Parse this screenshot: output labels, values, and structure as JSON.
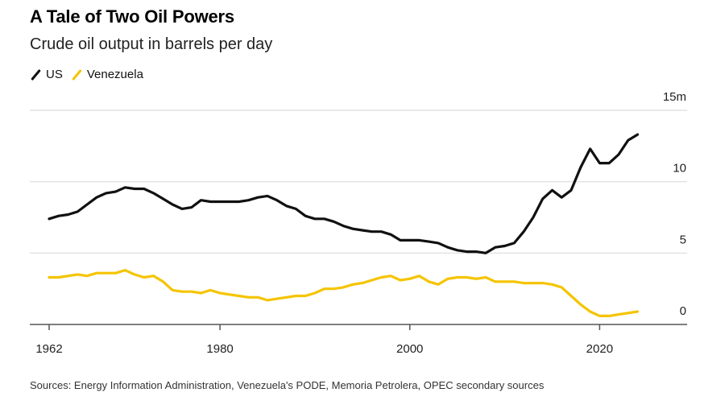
{
  "title": "A Tale of Two Oil Powers",
  "subtitle": "Crude oil output in barrels per day",
  "source": "Sources: Energy Information Administration, Venezuela's PODE, Memoria Petrolera, OPEC secondary sources",
  "chart_data": {
    "type": "line",
    "title": "A Tale of Two Oil Powers",
    "subtitle": "Crude oil output in barrels per day",
    "xlabel": "",
    "ylabel": "",
    "xlim": [
      1962,
      2024
    ],
    "ylim": [
      0,
      15
    ],
    "x_ticks": [
      1962,
      1980,
      2000,
      2020
    ],
    "x_tick_labels": [
      "1962",
      "1980",
      "2000",
      "2020"
    ],
    "y_ticks": [
      0,
      5,
      10,
      15
    ],
    "y_tick_labels": [
      "0",
      "5",
      "10",
      "15m"
    ],
    "grid": "horizontal",
    "legend_position": "top-left",
    "x": [
      1962,
      1963,
      1964,
      1965,
      1966,
      1967,
      1968,
      1969,
      1970,
      1971,
      1972,
      1973,
      1974,
      1975,
      1976,
      1977,
      1978,
      1979,
      1980,
      1981,
      1982,
      1983,
      1984,
      1985,
      1986,
      1987,
      1988,
      1989,
      1990,
      1991,
      1992,
      1993,
      1994,
      1995,
      1996,
      1997,
      1998,
      1999,
      2000,
      2001,
      2002,
      2003,
      2004,
      2005,
      2006,
      2007,
      2008,
      2009,
      2010,
      2011,
      2012,
      2013,
      2014,
      2015,
      2016,
      2017,
      2018,
      2019,
      2020,
      2021,
      2022,
      2023,
      2024
    ],
    "series": [
      {
        "name": "US",
        "color": "#111111",
        "values": [
          7.4,
          7.6,
          7.7,
          7.9,
          8.4,
          8.9,
          9.2,
          9.3,
          9.6,
          9.5,
          9.5,
          9.2,
          8.8,
          8.4,
          8.1,
          8.2,
          8.7,
          8.6,
          8.6,
          8.6,
          8.6,
          8.7,
          8.9,
          9.0,
          8.7,
          8.3,
          8.1,
          7.6,
          7.4,
          7.4,
          7.2,
          6.9,
          6.7,
          6.6,
          6.5,
          6.5,
          6.3,
          5.9,
          5.9,
          5.9,
          5.8,
          5.7,
          5.4,
          5.2,
          5.1,
          5.1,
          5.0,
          5.4,
          5.5,
          5.7,
          6.5,
          7.5,
          8.8,
          9.4,
          8.9,
          9.4,
          11.0,
          12.3,
          11.3,
          11.3,
          11.9,
          12.9,
          13.3
        ]
      },
      {
        "name": "Venezuela",
        "color": "#F5C400",
        "values": [
          3.3,
          3.3,
          3.4,
          3.5,
          3.4,
          3.6,
          3.6,
          3.6,
          3.8,
          3.5,
          3.3,
          3.4,
          3.0,
          2.4,
          2.3,
          2.3,
          2.2,
          2.4,
          2.2,
          2.1,
          2.0,
          1.9,
          1.9,
          1.7,
          1.8,
          1.9,
          2.0,
          2.0,
          2.2,
          2.5,
          2.5,
          2.6,
          2.8,
          2.9,
          3.1,
          3.3,
          3.4,
          3.1,
          3.2,
          3.4,
          3.0,
          2.8,
          3.2,
          3.3,
          3.3,
          3.2,
          3.3,
          3.0,
          3.0,
          3.0,
          2.9,
          2.9,
          2.9,
          2.8,
          2.6,
          2.0,
          1.4,
          0.9,
          0.6,
          0.6,
          0.7,
          0.8,
          0.9
        ]
      }
    ]
  }
}
